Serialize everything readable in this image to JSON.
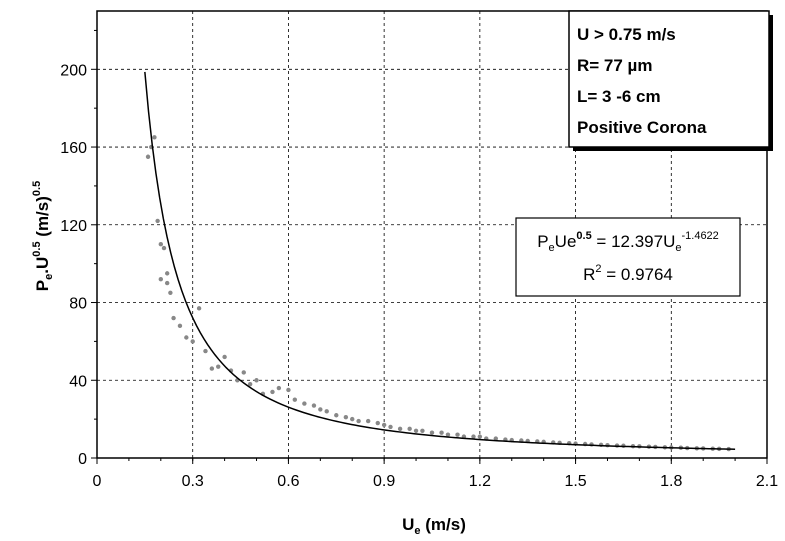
{
  "chart_data": {
    "type": "scatter",
    "xlabel": {
      "main": "U",
      "sub": "e",
      "unit": " (m/s)"
    },
    "ylabel": {
      "p1": "P",
      "p1sub": "e",
      "p2": ".U",
      "p2sup": "0.5",
      "p3": " (m/s)",
      "p3sup": "0.5"
    },
    "xlim": [
      0,
      2.1
    ],
    "ylim": [
      0,
      230
    ],
    "x_ticks": [
      0,
      0.3,
      0.6,
      0.9,
      1.2,
      1.5,
      1.8,
      2.1
    ],
    "x_tick_labels": [
      "0",
      "0.3",
      "0.6",
      "0.9",
      "1.2",
      "1.5",
      "1.8",
      "2.1"
    ],
    "y_ticks": [
      0,
      40,
      80,
      120,
      160,
      200
    ],
    "y_tick_labels": [
      "0",
      "40",
      "80",
      "120",
      "160",
      "200"
    ],
    "grid": true,
    "info_box": [
      "U > 0.75 m/s",
      "R= 77 µm",
      "L= 3 -6 cm",
      "Positive Corona"
    ],
    "equation": {
      "part1": "P",
      "part1sub": "e",
      "part2": "Ue",
      "part2sup": "0.5",
      "part3": " = 12.397U",
      "part3sub": "e",
      "part3sup": "-1.4622",
      "r2_main": "R",
      "r2_sup": "2",
      "r2_value": " = 0.9764"
    },
    "fit": {
      "coef": 12.397,
      "exponent": -1.4622,
      "x_start": 0.15,
      "x_end": 2.0
    },
    "series": [
      {
        "x": [
          0.16,
          0.17,
          0.18,
          0.19,
          0.2,
          0.21,
          0.22,
          0.23,
          0.2,
          0.22,
          0.24,
          0.26,
          0.28,
          0.3,
          0.32,
          0.34,
          0.36,
          0.38,
          0.4,
          0.42,
          0.44,
          0.46,
          0.48,
          0.5,
          0.52,
          0.55,
          0.57,
          0.6,
          0.62,
          0.65,
          0.68,
          0.7,
          0.72,
          0.75,
          0.78,
          0.8,
          0.82,
          0.85,
          0.88,
          0.9,
          0.92,
          0.95,
          0.98,
          1.0,
          1.02,
          1.05,
          1.08,
          1.1,
          1.13,
          1.15,
          1.18,
          1.2,
          1.22,
          1.25,
          1.28,
          1.3,
          1.33,
          1.35,
          1.38,
          1.4,
          1.43,
          1.45,
          1.48,
          1.5,
          1.53,
          1.55,
          1.58,
          1.6,
          1.63,
          1.65,
          1.68,
          1.7,
          1.73,
          1.75,
          1.78,
          1.8,
          1.83,
          1.85,
          1.88,
          1.9,
          1.93,
          1.95,
          1.98
        ],
        "y": [
          155,
          160,
          165,
          122,
          110,
          108,
          90,
          85,
          92,
          95,
          72,
          68,
          62,
          60,
          77,
          55,
          46,
          47,
          52,
          45,
          40,
          44,
          38,
          40,
          33,
          34,
          36,
          35,
          30,
          28,
          27,
          25,
          24,
          22,
          21,
          20,
          19,
          19,
          18,
          17,
          16,
          15,
          15,
          14,
          14,
          13,
          13,
          12,
          12,
          11,
          11,
          11,
          10,
          10,
          9.5,
          9.2,
          9,
          8.8,
          8.5,
          8.3,
          8,
          7.8,
          7.6,
          7.4,
          7.2,
          7,
          6.8,
          6.6,
          6.4,
          6.3,
          6.1,
          6,
          5.8,
          5.7,
          5.5,
          5.4,
          5.3,
          5.1,
          5,
          4.9,
          4.8,
          4.7,
          4.6
        ]
      }
    ]
  }
}
